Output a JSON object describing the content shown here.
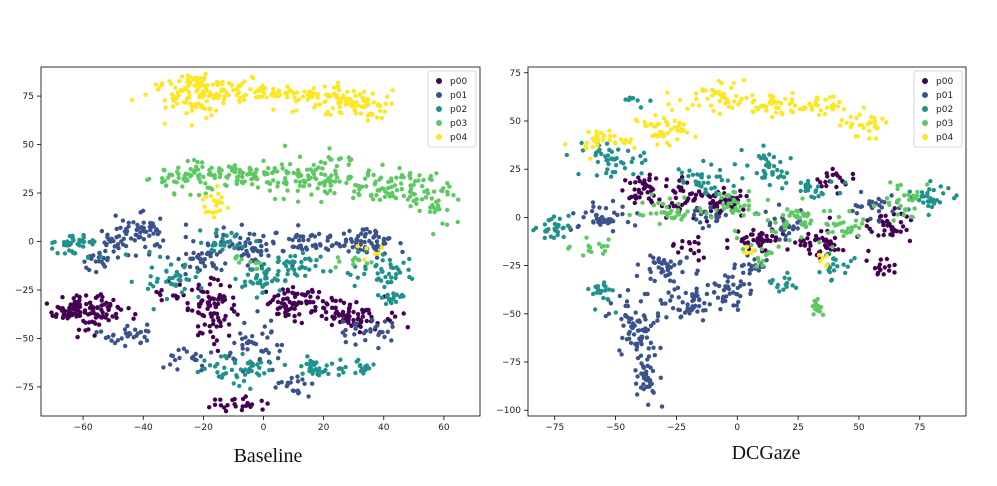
{
  "colors": {
    "p00": "#440154",
    "p01": "#3b528b",
    "p02": "#21918c",
    "p03": "#5ec962",
    "p04": "#fde725",
    "axes": "#000000",
    "background": "#ffffff"
  },
  "chart_data": [
    {
      "type": "scatter",
      "title": "",
      "caption": "Baseline",
      "xlabel": "",
      "ylabel": "",
      "xlim": [
        -74,
        72
      ],
      "ylim": [
        -90,
        90
      ],
      "xticks": [
        -60,
        -40,
        -20,
        0,
        20,
        40,
        60
      ],
      "yticks": [
        -75,
        -50,
        -25,
        0,
        25,
        50,
        75
      ],
      "legend_position": "top-right",
      "series": [
        {
          "name": "p00",
          "clusters": [
            {
              "cx": -62,
              "cy": -35,
              "sx": 4,
              "sy": 5,
              "n": 80
            },
            {
              "cx": -53,
              "cy": -35,
              "sx": 4,
              "sy": 3,
              "n": 35
            },
            {
              "cx": -17,
              "cy": -35,
              "sx": 4,
              "sy": 7,
              "n": 80
            },
            {
              "cx": 10,
              "cy": -32,
              "sx": 5,
              "sy": 4,
              "n": 70
            },
            {
              "cx": 30,
              "cy": -37,
              "sx": 6,
              "sy": 4,
              "n": 80
            },
            {
              "cx": -8,
              "cy": -84,
              "sx": 5,
              "sy": 2,
              "n": 25
            },
            {
              "cx": -33,
              "cy": -27,
              "sx": 3,
              "sy": 3,
              "n": 12
            }
          ]
        },
        {
          "name": "p01",
          "clusters": [
            {
              "cx": -42,
              "cy": 3,
              "sx": 6,
              "sy": 5,
              "n": 70
            },
            {
              "cx": -55,
              "cy": -8,
              "sx": 4,
              "sy": 6,
              "n": 25
            },
            {
              "cx": -45,
              "cy": -48,
              "sx": 5,
              "sy": 3,
              "n": 30
            },
            {
              "cx": -20,
              "cy": -8,
              "sx": 5,
              "sy": 4,
              "n": 40
            },
            {
              "cx": -5,
              "cy": -2,
              "sx": 5,
              "sy": 5,
              "n": 50
            },
            {
              "cx": 15,
              "cy": 0,
              "sx": 6,
              "sy": 3,
              "n": 45
            },
            {
              "cx": 35,
              "cy": 0,
              "sx": 6,
              "sy": 4,
              "n": 60
            },
            {
              "cx": -2,
              "cy": -55,
              "sx": 5,
              "sy": 6,
              "n": 40
            },
            {
              "cx": 10,
              "cy": -75,
              "sx": 4,
              "sy": 4,
              "n": 20
            },
            {
              "cx": 35,
              "cy": -48,
              "sx": 5,
              "sy": 4,
              "n": 30
            },
            {
              "cx": -25,
              "cy": -60,
              "sx": 4,
              "sy": 4,
              "n": 20
            }
          ]
        },
        {
          "name": "p02",
          "clusters": [
            {
              "cx": -63,
              "cy": -2,
              "sx": 4,
              "sy": 3,
              "n": 40
            },
            {
              "cx": -30,
              "cy": -20,
              "sx": 5,
              "sy": 5,
              "n": 40
            },
            {
              "cx": -13,
              "cy": 0,
              "sx": 4,
              "sy": 3,
              "n": 25
            },
            {
              "cx": 0,
              "cy": -20,
              "sx": 5,
              "sy": 4,
              "n": 40
            },
            {
              "cx": 12,
              "cy": -12,
              "sx": 5,
              "sy": 3,
              "n": 35
            },
            {
              "cx": 40,
              "cy": -15,
              "sx": 5,
              "sy": 4,
              "n": 40
            },
            {
              "cx": 43,
              "cy": -28,
              "sx": 3,
              "sy": 3,
              "n": 20
            },
            {
              "cx": -10,
              "cy": -65,
              "sx": 7,
              "sy": 4,
              "n": 45
            },
            {
              "cx": 20,
              "cy": -65,
              "sx": 5,
              "sy": 3,
              "n": 35
            },
            {
              "cx": 33,
              "cy": -65,
              "sx": 3,
              "sy": 2,
              "n": 15
            }
          ]
        },
        {
          "name": "p03",
          "clusters": [
            {
              "cx": -25,
              "cy": 33,
              "sx": 6,
              "sy": 4,
              "n": 60
            },
            {
              "cx": -5,
              "cy": 35,
              "sx": 8,
              "sy": 3,
              "n": 60
            },
            {
              "cx": 18,
              "cy": 33,
              "sx": 10,
              "sy": 5,
              "n": 110
            },
            {
              "cx": 45,
              "cy": 28,
              "sx": 8,
              "sy": 4,
              "n": 70
            },
            {
              "cx": 58,
              "cy": 20,
              "sx": 4,
              "sy": 5,
              "n": 30
            },
            {
              "cx": -6,
              "cy": -12,
              "sx": 3,
              "sy": 3,
              "n": 10
            },
            {
              "cx": 30,
              "cy": -10,
              "sx": 4,
              "sy": 3,
              "n": 10
            }
          ]
        },
        {
          "name": "p04",
          "clusters": [
            {
              "cx": -20,
              "cy": 80,
              "sx": 8,
              "sy": 3,
              "n": 80
            },
            {
              "cx": -20,
              "cy": 71,
              "sx": 7,
              "sy": 4,
              "n": 50
            },
            {
              "cx": 5,
              "cy": 76,
              "sx": 8,
              "sy": 3,
              "n": 60
            },
            {
              "cx": 25,
              "cy": 74,
              "sx": 7,
              "sy": 4,
              "n": 60
            },
            {
              "cx": 35,
              "cy": 70,
              "sx": 4,
              "sy": 4,
              "n": 30
            },
            {
              "cx": -16,
              "cy": 20,
              "sx": 2,
              "sy": 3,
              "n": 20
            },
            {
              "cx": 36,
              "cy": -6,
              "sx": 2,
              "sy": 2,
              "n": 6
            }
          ]
        }
      ]
    },
    {
      "type": "scatter",
      "title": "",
      "caption": "DCGaze",
      "xlabel": "",
      "ylabel": "",
      "xlim": [
        -86,
        94
      ],
      "ylim": [
        -103,
        78
      ],
      "xticks": [
        -75,
        -50,
        -25,
        0,
        25,
        50,
        75
      ],
      "yticks": [
        -100,
        -75,
        -50,
        -25,
        0,
        25,
        50,
        75
      ],
      "legend_position": "top-right",
      "series": [
        {
          "name": "p00",
          "clusters": [
            {
              "cx": -40,
              "cy": 15,
              "sx": 5,
              "sy": 4,
              "n": 40
            },
            {
              "cx": -22,
              "cy": 10,
              "sx": 5,
              "sy": 5,
              "n": 40
            },
            {
              "cx": -5,
              "cy": 8,
              "sx": 4,
              "sy": 4,
              "n": 40
            },
            {
              "cx": 10,
              "cy": -12,
              "sx": 6,
              "sy": 3,
              "n": 40
            },
            {
              "cx": 33,
              "cy": -12,
              "sx": 5,
              "sy": 4,
              "n": 45
            },
            {
              "cx": 62,
              "cy": -5,
              "sx": 5,
              "sy": 5,
              "n": 40
            },
            {
              "cx": 40,
              "cy": 20,
              "sx": 4,
              "sy": 3,
              "n": 20
            },
            {
              "cx": -20,
              "cy": -15,
              "sx": 4,
              "sy": 3,
              "n": 15
            },
            {
              "cx": 60,
              "cy": -26,
              "sx": 3,
              "sy": 2,
              "n": 15
            }
          ]
        },
        {
          "name": "p01",
          "clusters": [
            {
              "cx": -42,
              "cy": -55,
              "sx": 5,
              "sy": 8,
              "n": 60
            },
            {
              "cx": -38,
              "cy": -78,
              "sx": 3,
              "sy": 8,
              "n": 45
            },
            {
              "cx": -20,
              "cy": -45,
              "sx": 6,
              "sy": 4,
              "n": 50
            },
            {
              "cx": -5,
              "cy": -40,
              "sx": 5,
              "sy": 5,
              "n": 40
            },
            {
              "cx": -30,
              "cy": -25,
              "sx": 6,
              "sy": 3,
              "n": 40
            },
            {
              "cx": -55,
              "cy": 0,
              "sx": 6,
              "sy": 5,
              "n": 40
            },
            {
              "cx": -12,
              "cy": 0,
              "sx": 4,
              "sy": 3,
              "n": 20
            },
            {
              "cx": 20,
              "cy": -5,
              "sx": 5,
              "sy": 4,
              "n": 30
            },
            {
              "cx": 5,
              "cy": -25,
              "sx": 4,
              "sy": 3,
              "n": 20
            },
            {
              "cx": 55,
              "cy": 5,
              "sx": 5,
              "sy": 4,
              "n": 25
            }
          ]
        },
        {
          "name": "p02",
          "clusters": [
            {
              "cx": -75,
              "cy": -5,
              "sx": 4,
              "sy": 3,
              "n": 30
            },
            {
              "cx": -52,
              "cy": 30,
              "sx": 6,
              "sy": 5,
              "n": 45
            },
            {
              "cx": -12,
              "cy": 20,
              "sx": 6,
              "sy": 4,
              "n": 35
            },
            {
              "cx": 10,
              "cy": 25,
              "sx": 5,
              "sy": 5,
              "n": 35
            },
            {
              "cx": 30,
              "cy": 15,
              "sx": 5,
              "sy": 4,
              "n": 25
            },
            {
              "cx": 80,
              "cy": 10,
              "sx": 4,
              "sy": 4,
              "n": 30
            },
            {
              "cx": 40,
              "cy": -25,
              "sx": 4,
              "sy": 3,
              "n": 20
            },
            {
              "cx": -55,
              "cy": -40,
              "sx": 3,
              "sy": 4,
              "n": 20
            },
            {
              "cx": -42,
              "cy": 62,
              "sx": 2,
              "sy": 2,
              "n": 8
            },
            {
              "cx": 20,
              "cy": -35,
              "sx": 4,
              "sy": 3,
              "n": 15
            }
          ]
        },
        {
          "name": "p03",
          "clusters": [
            {
              "cx": -30,
              "cy": 2,
              "sx": 6,
              "sy": 4,
              "n": 35
            },
            {
              "cx": 0,
              "cy": 5,
              "sx": 6,
              "sy": 5,
              "n": 35
            },
            {
              "cx": 25,
              "cy": 0,
              "sx": 6,
              "sy": 5,
              "n": 40
            },
            {
              "cx": 45,
              "cy": -5,
              "sx": 5,
              "sy": 4,
              "n": 25
            },
            {
              "cx": 70,
              "cy": 10,
              "sx": 5,
              "sy": 5,
              "n": 30
            },
            {
              "cx": 33,
              "cy": -47,
              "sx": 2,
              "sy": 2,
              "n": 15
            },
            {
              "cx": -60,
              "cy": -15,
              "sx": 4,
              "sy": 3,
              "n": 15
            },
            {
              "cx": 10,
              "cy": -20,
              "sx": 4,
              "sy": 3,
              "n": 15
            }
          ]
        },
        {
          "name": "p04",
          "clusters": [
            {
              "cx": -55,
              "cy": 40,
              "sx": 5,
              "sy": 3,
              "n": 35
            },
            {
              "cx": -30,
              "cy": 47,
              "sx": 7,
              "sy": 4,
              "n": 45
            },
            {
              "cx": -5,
              "cy": 63,
              "sx": 8,
              "sy": 4,
              "n": 40
            },
            {
              "cx": 15,
              "cy": 58,
              "sx": 7,
              "sy": 3,
              "n": 45
            },
            {
              "cx": 35,
              "cy": 58,
              "sx": 5,
              "sy": 3,
              "n": 25
            },
            {
              "cx": 52,
              "cy": 47,
              "sx": 4,
              "sy": 5,
              "n": 30
            },
            {
              "cx": 35,
              "cy": -23,
              "sx": 2,
              "sy": 2,
              "n": 6
            },
            {
              "cx": 5,
              "cy": -18,
              "sx": 2,
              "sy": 2,
              "n": 5
            }
          ]
        }
      ]
    }
  ]
}
